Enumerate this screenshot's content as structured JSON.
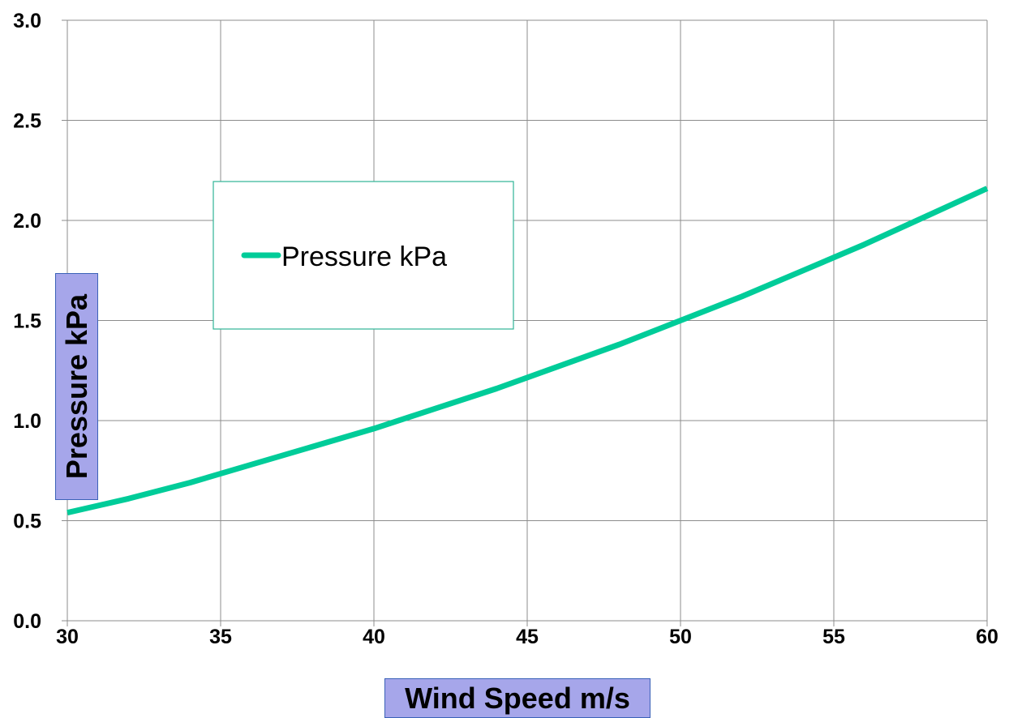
{
  "chart_data": {
    "type": "line",
    "title": "",
    "xlabel": "Wind Speed m/s",
    "ylabel": "Pressure  kPa",
    "xlim": [
      30,
      60
    ],
    "ylim": [
      0.0,
      3.0
    ],
    "xticks": [
      "30",
      "35",
      "40",
      "45",
      "50",
      "55",
      "60"
    ],
    "yticks": [
      "0.0",
      "0.5",
      "1.0",
      "1.5",
      "2.0",
      "2.5",
      "3.0"
    ],
    "grid": true,
    "legend": {
      "position": "upper-left-inside"
    },
    "series": [
      {
        "name": "Pressure  kPa",
        "color": "#00cc99",
        "x": [
          30,
          32,
          34,
          36,
          38,
          40,
          42,
          44,
          46,
          48,
          50,
          52,
          54,
          56,
          58,
          60
        ],
        "y": [
          0.54,
          0.61,
          0.69,
          0.78,
          0.87,
          0.96,
          1.06,
          1.16,
          1.27,
          1.38,
          1.5,
          1.62,
          1.75,
          1.88,
          2.02,
          2.16
        ]
      }
    ]
  }
}
